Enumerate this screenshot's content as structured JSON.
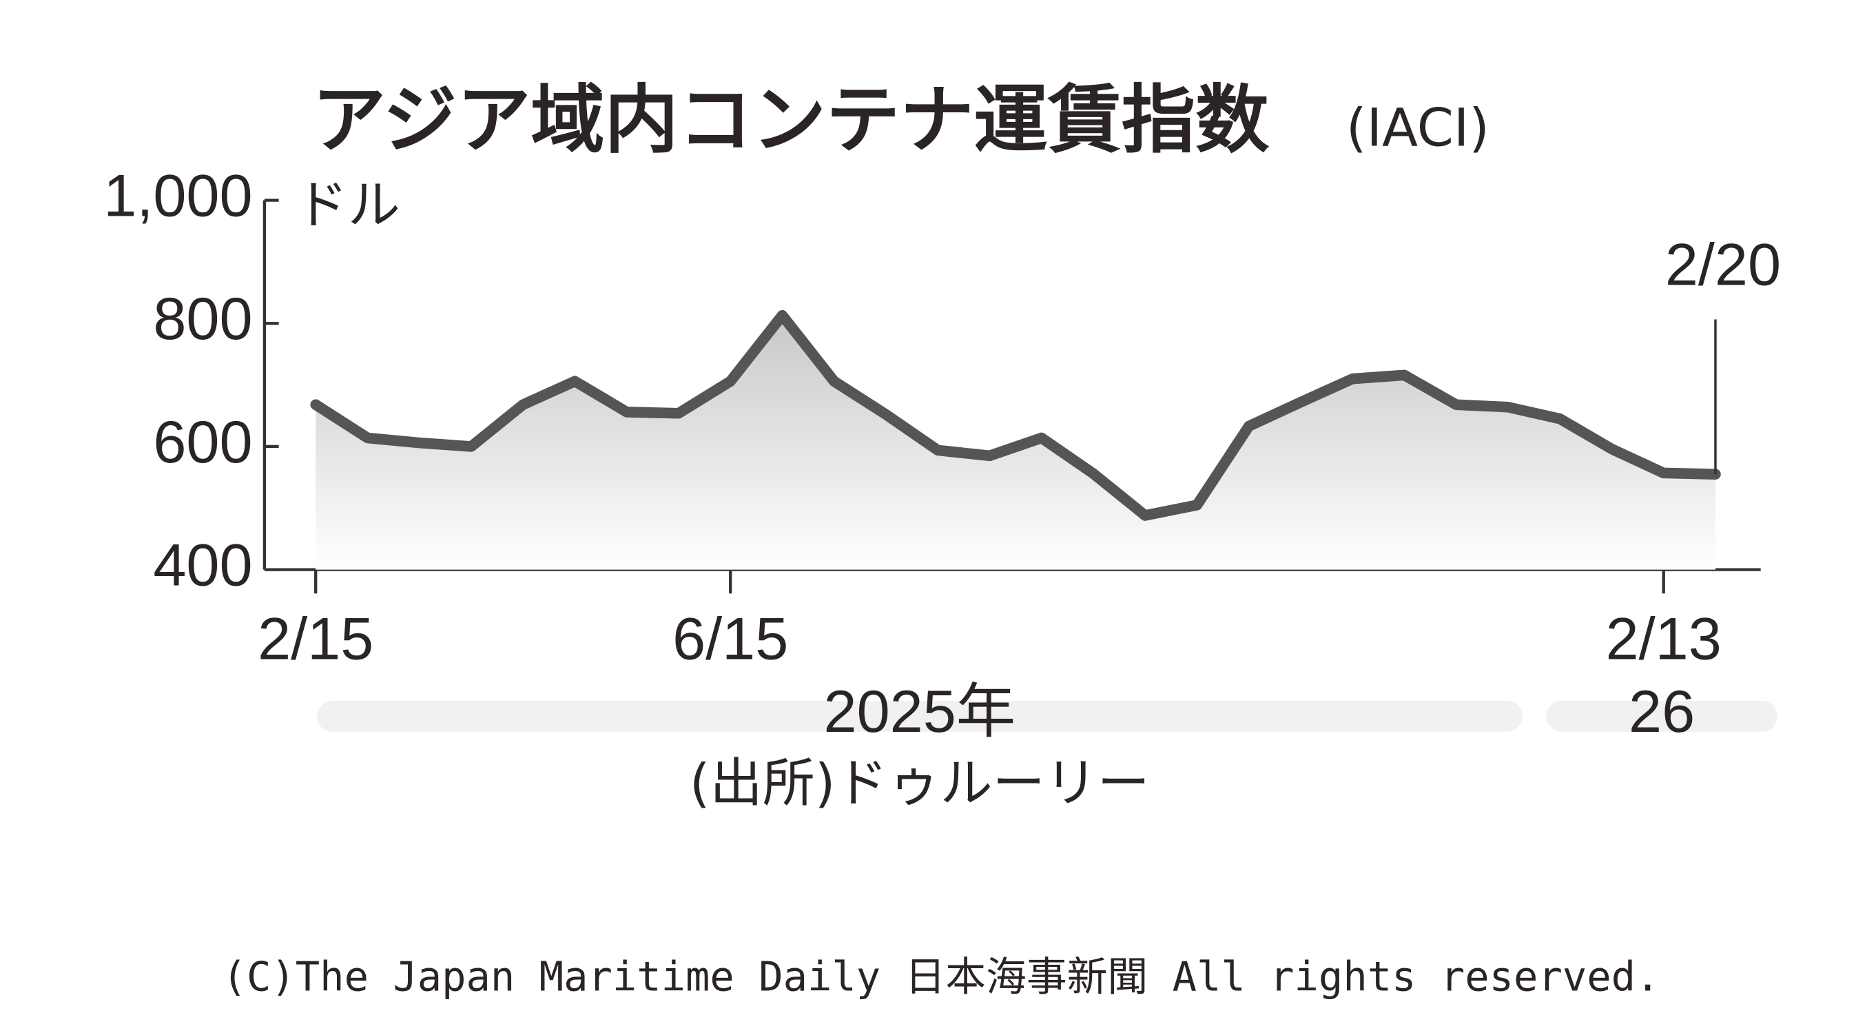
{
  "chart_data": {
    "type": "line",
    "title": "アジア域内コンテナ運賃指数",
    "title_suffix": "(IACI)",
    "y_unit": "ドル",
    "categories": [
      "2/15",
      null,
      null,
      null,
      null,
      null,
      null,
      null,
      "6/15",
      null,
      null,
      null,
      null,
      null,
      null,
      null,
      null,
      null,
      null,
      null,
      null,
      null,
      null,
      null,
      null,
      null,
      "2/13",
      null
    ],
    "series": [
      {
        "name": "IACI",
        "color": "#555555",
        "values": [
          668,
          614,
          606,
          600,
          668,
          706,
          656,
          654,
          706,
          813,
          706,
          652,
          594,
          585,
          614,
          556,
          488,
          505,
          633,
          672,
          710,
          716,
          668,
          664,
          645,
          596,
          557,
          555
        ]
      }
    ],
    "ylim": [
      400,
      1000
    ],
    "yticks": [
      400,
      600,
      800,
      {
        "value": 1000,
        "label": "1,000"
      }
    ],
    "last_point_label": "2/20",
    "year_labels": [
      "2025年",
      "26"
    ],
    "source": "(出所)ドゥルーリー",
    "copyright": "(C)The Japan Maritime Daily 日本海事新聞 All rights reserved."
  }
}
